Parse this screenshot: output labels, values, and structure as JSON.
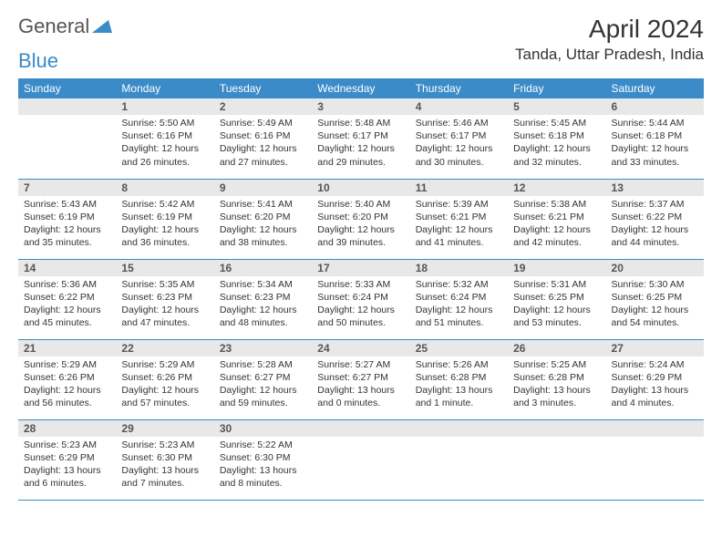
{
  "logo": {
    "general": "General",
    "blue": "Blue"
  },
  "title": "April 2024",
  "location": "Tanda, Uttar Pradesh, India",
  "colors": {
    "header_bg": "#3b8bc9",
    "day_num_bg": "#e8e8e8",
    "border": "#3b8bc9",
    "text": "#333333"
  },
  "weekdays": [
    "Sunday",
    "Monday",
    "Tuesday",
    "Wednesday",
    "Thursday",
    "Friday",
    "Saturday"
  ],
  "weeks": [
    [
      null,
      {
        "n": "1",
        "sr": "Sunrise: 5:50 AM",
        "ss": "Sunset: 6:16 PM",
        "dl": "Daylight: 12 hours and 26 minutes."
      },
      {
        "n": "2",
        "sr": "Sunrise: 5:49 AM",
        "ss": "Sunset: 6:16 PM",
        "dl": "Daylight: 12 hours and 27 minutes."
      },
      {
        "n": "3",
        "sr": "Sunrise: 5:48 AM",
        "ss": "Sunset: 6:17 PM",
        "dl": "Daylight: 12 hours and 29 minutes."
      },
      {
        "n": "4",
        "sr": "Sunrise: 5:46 AM",
        "ss": "Sunset: 6:17 PM",
        "dl": "Daylight: 12 hours and 30 minutes."
      },
      {
        "n": "5",
        "sr": "Sunrise: 5:45 AM",
        "ss": "Sunset: 6:18 PM",
        "dl": "Daylight: 12 hours and 32 minutes."
      },
      {
        "n": "6",
        "sr": "Sunrise: 5:44 AM",
        "ss": "Sunset: 6:18 PM",
        "dl": "Daylight: 12 hours and 33 minutes."
      }
    ],
    [
      {
        "n": "7",
        "sr": "Sunrise: 5:43 AM",
        "ss": "Sunset: 6:19 PM",
        "dl": "Daylight: 12 hours and 35 minutes."
      },
      {
        "n": "8",
        "sr": "Sunrise: 5:42 AM",
        "ss": "Sunset: 6:19 PM",
        "dl": "Daylight: 12 hours and 36 minutes."
      },
      {
        "n": "9",
        "sr": "Sunrise: 5:41 AM",
        "ss": "Sunset: 6:20 PM",
        "dl": "Daylight: 12 hours and 38 minutes."
      },
      {
        "n": "10",
        "sr": "Sunrise: 5:40 AM",
        "ss": "Sunset: 6:20 PM",
        "dl": "Daylight: 12 hours and 39 minutes."
      },
      {
        "n": "11",
        "sr": "Sunrise: 5:39 AM",
        "ss": "Sunset: 6:21 PM",
        "dl": "Daylight: 12 hours and 41 minutes."
      },
      {
        "n": "12",
        "sr": "Sunrise: 5:38 AM",
        "ss": "Sunset: 6:21 PM",
        "dl": "Daylight: 12 hours and 42 minutes."
      },
      {
        "n": "13",
        "sr": "Sunrise: 5:37 AM",
        "ss": "Sunset: 6:22 PM",
        "dl": "Daylight: 12 hours and 44 minutes."
      }
    ],
    [
      {
        "n": "14",
        "sr": "Sunrise: 5:36 AM",
        "ss": "Sunset: 6:22 PM",
        "dl": "Daylight: 12 hours and 45 minutes."
      },
      {
        "n": "15",
        "sr": "Sunrise: 5:35 AM",
        "ss": "Sunset: 6:23 PM",
        "dl": "Daylight: 12 hours and 47 minutes."
      },
      {
        "n": "16",
        "sr": "Sunrise: 5:34 AM",
        "ss": "Sunset: 6:23 PM",
        "dl": "Daylight: 12 hours and 48 minutes."
      },
      {
        "n": "17",
        "sr": "Sunrise: 5:33 AM",
        "ss": "Sunset: 6:24 PM",
        "dl": "Daylight: 12 hours and 50 minutes."
      },
      {
        "n": "18",
        "sr": "Sunrise: 5:32 AM",
        "ss": "Sunset: 6:24 PM",
        "dl": "Daylight: 12 hours and 51 minutes."
      },
      {
        "n": "19",
        "sr": "Sunrise: 5:31 AM",
        "ss": "Sunset: 6:25 PM",
        "dl": "Daylight: 12 hours and 53 minutes."
      },
      {
        "n": "20",
        "sr": "Sunrise: 5:30 AM",
        "ss": "Sunset: 6:25 PM",
        "dl": "Daylight: 12 hours and 54 minutes."
      }
    ],
    [
      {
        "n": "21",
        "sr": "Sunrise: 5:29 AM",
        "ss": "Sunset: 6:26 PM",
        "dl": "Daylight: 12 hours and 56 minutes."
      },
      {
        "n": "22",
        "sr": "Sunrise: 5:29 AM",
        "ss": "Sunset: 6:26 PM",
        "dl": "Daylight: 12 hours and 57 minutes."
      },
      {
        "n": "23",
        "sr": "Sunrise: 5:28 AM",
        "ss": "Sunset: 6:27 PM",
        "dl": "Daylight: 12 hours and 59 minutes."
      },
      {
        "n": "24",
        "sr": "Sunrise: 5:27 AM",
        "ss": "Sunset: 6:27 PM",
        "dl": "Daylight: 13 hours and 0 minutes."
      },
      {
        "n": "25",
        "sr": "Sunrise: 5:26 AM",
        "ss": "Sunset: 6:28 PM",
        "dl": "Daylight: 13 hours and 1 minute."
      },
      {
        "n": "26",
        "sr": "Sunrise: 5:25 AM",
        "ss": "Sunset: 6:28 PM",
        "dl": "Daylight: 13 hours and 3 minutes."
      },
      {
        "n": "27",
        "sr": "Sunrise: 5:24 AM",
        "ss": "Sunset: 6:29 PM",
        "dl": "Daylight: 13 hours and 4 minutes."
      }
    ],
    [
      {
        "n": "28",
        "sr": "Sunrise: 5:23 AM",
        "ss": "Sunset: 6:29 PM",
        "dl": "Daylight: 13 hours and 6 minutes."
      },
      {
        "n": "29",
        "sr": "Sunrise: 5:23 AM",
        "ss": "Sunset: 6:30 PM",
        "dl": "Daylight: 13 hours and 7 minutes."
      },
      {
        "n": "30",
        "sr": "Sunrise: 5:22 AM",
        "ss": "Sunset: 6:30 PM",
        "dl": "Daylight: 13 hours and 8 minutes."
      },
      null,
      null,
      null,
      null
    ]
  ]
}
